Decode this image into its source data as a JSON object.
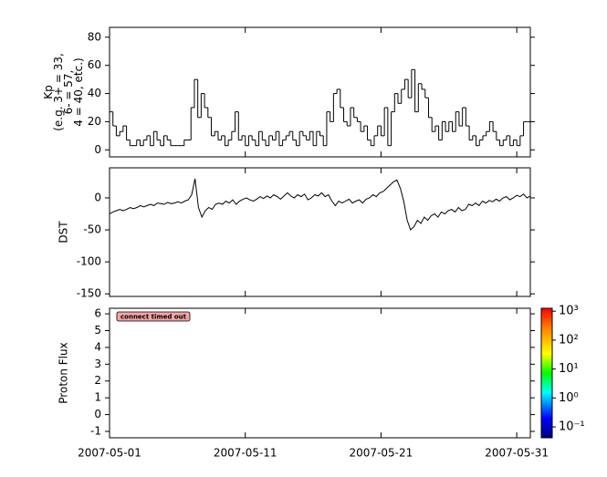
{
  "chart_data": [
    {
      "type": "step",
      "ylabel": [
        "Kp",
        "(e.g. 3+ = 33,",
        "6- = 57,",
        "4 = 40, etc.)"
      ],
      "ylim": [
        -5,
        87
      ],
      "yticks": [
        0,
        20,
        40,
        60,
        80
      ],
      "color": "#000000",
      "values": [
        27,
        17,
        10,
        13,
        17,
        7,
        3,
        3,
        7,
        3,
        7,
        10,
        3,
        13,
        7,
        3,
        10,
        7,
        3,
        3,
        3,
        3,
        7,
        7,
        30,
        50,
        23,
        40,
        30,
        23,
        10,
        13,
        7,
        10,
        3,
        7,
        13,
        27,
        7,
        10,
        3,
        10,
        7,
        3,
        13,
        7,
        3,
        10,
        7,
        13,
        3,
        7,
        10,
        13,
        7,
        3,
        13,
        10,
        7,
        13,
        3,
        13,
        10,
        3,
        27,
        20,
        40,
        43,
        30,
        20,
        17,
        30,
        23,
        20,
        13,
        17,
        7,
        3,
        10,
        17,
        10,
        30,
        3,
        27,
        40,
        33,
        43,
        50,
        37,
        57,
        27,
        47,
        43,
        37,
        23,
        13,
        17,
        7,
        20,
        13,
        20,
        13,
        27,
        17,
        30,
        17,
        7,
        10,
        3,
        7,
        10,
        13,
        20,
        13,
        7,
        3,
        7,
        10,
        3,
        7,
        3,
        10,
        20,
        20
      ]
    },
    {
      "type": "line",
      "ylabel": [
        "DST"
      ],
      "ylim": [
        -154,
        47
      ],
      "yticks": [
        0,
        -50,
        -100,
        -150
      ],
      "color": "#000000",
      "values": [
        -25,
        -22,
        -20,
        -18,
        -20,
        -18,
        -15,
        -17,
        -15,
        -12,
        -14,
        -12,
        -10,
        -12,
        -8,
        -9,
        -10,
        -7,
        -9,
        -8,
        -6,
        -8,
        -5,
        -3,
        5,
        30,
        -15,
        -30,
        -20,
        -15,
        -18,
        -10,
        -8,
        -10,
        -5,
        -8,
        -3,
        -10,
        -5,
        -2,
        0,
        -3,
        -5,
        -2,
        2,
        -1,
        3,
        0,
        5,
        2,
        -2,
        3,
        8,
        3,
        0,
        5,
        2,
        6,
        -3,
        0,
        5,
        3,
        8,
        2,
        5,
        -5,
        -12,
        -5,
        -8,
        -5,
        -2,
        -8,
        -5,
        -3,
        -8,
        -2,
        0,
        5,
        2,
        8,
        10,
        15,
        20,
        25,
        28,
        15,
        -5,
        -35,
        -50,
        -45,
        -35,
        -40,
        -30,
        -35,
        -28,
        -25,
        -30,
        -22,
        -25,
        -20,
        -18,
        -22,
        -15,
        -20,
        -18,
        -10,
        -12,
        -8,
        -12,
        -5,
        -8,
        -4,
        -6,
        -2,
        -5,
        0,
        2,
        -3,
        0,
        4,
        2,
        6,
        0,
        3
      ]
    },
    {
      "type": "spectrogram",
      "ylabel": [
        "Proton Flux"
      ],
      "ylim": [
        -1.38,
        6.33
      ],
      "yticks": [
        -1,
        0,
        1,
        2,
        3,
        4,
        5,
        6
      ],
      "annotation": "connect timed out",
      "xlim": [
        "2007-05-01",
        "2007-06-01"
      ],
      "xticks": [
        "2007-05-01",
        "2007-05-11",
        "2007-05-21",
        "2007-05-31"
      ],
      "colorbar": {
        "scale": "log",
        "zlim": [
          0.042,
          1260
        ],
        "zticks": [
          {
            "value": 0.1,
            "label": "10⁻¹"
          },
          {
            "value": 1,
            "label": "10⁰"
          },
          {
            "value": 10,
            "label": "10¹"
          },
          {
            "value": 100,
            "label": "10²"
          },
          {
            "value": 1000,
            "label": "10³"
          }
        ]
      }
    }
  ]
}
